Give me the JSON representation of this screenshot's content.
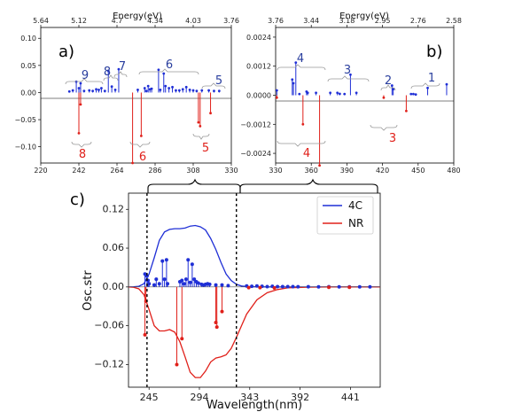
{
  "chart_data": [
    {
      "panel": "a)",
      "type": "stem",
      "xlim": [
        220,
        330
      ],
      "ylim": [
        -0.13,
        0.12
      ],
      "x_ticks": [
        220,
        242,
        264,
        286,
        308,
        330
      ],
      "y_ticks": [
        -0.1,
        -0.05,
        0.0,
        0.05,
        0.1
      ],
      "y_tick_labels": [
        "−0.10",
        "−0.05",
        "0.00",
        "0.05",
        "0.10"
      ],
      "top_axis": {
        "label": "Energy(eV)",
        "ticks": [
          220,
          242,
          264,
          286,
          308,
          330
        ],
        "tick_labels": [
          "5.64",
          "5.12",
          "4.7",
          "4.34",
          "4.03",
          "3.76"
        ]
      },
      "series": [
        {
          "color": "#1f2fd6",
          "points": [
            [
              236.5,
              0.002
            ],
            [
              238.5,
              0.004
            ],
            [
              240.5,
              0.02
            ],
            [
              242,
              0.008
            ],
            [
              243,
              0.017
            ],
            [
              245,
              0.003
            ],
            [
              248,
              0.004
            ],
            [
              250,
              0.003
            ],
            [
              252,
              0.006
            ],
            [
              253.5,
              0.005
            ],
            [
              255,
              0.008
            ],
            [
              257,
              0.003
            ],
            [
              259,
              0.04
            ],
            [
              261,
              0.011
            ],
            [
              263,
              0.005
            ],
            [
              265,
              0.043
            ],
            [
              276,
              0.005
            ],
            [
              280,
              0.008
            ],
            [
              281,
              0.003
            ],
            [
              282,
              0.012
            ],
            [
              283,
              0.006
            ],
            [
              284,
              0.007
            ],
            [
              288,
              0.042
            ],
            [
              289,
              0.005
            ],
            [
              291,
              0.035
            ],
            [
              292,
              0.012
            ],
            [
              294,
              0.008
            ],
            [
              296,
              0.01
            ],
            [
              298,
              0.004
            ],
            [
              300,
              0.004
            ],
            [
              302,
              0.006
            ],
            [
              304,
              0.01
            ],
            [
              306,
              0.005
            ],
            [
              308,
              0.004
            ],
            [
              310,
              0.003
            ],
            [
              313,
              0.004
            ],
            [
              317,
              0.004
            ],
            [
              320,
              0.003
            ],
            [
              323,
              0.003
            ]
          ]
        },
        {
          "color": "#e0201a",
          "points": [
            [
              242,
              -0.075
            ],
            [
              243,
              -0.022
            ],
            [
              273,
              -0.13
            ],
            [
              278,
              -0.08
            ],
            [
              311,
              -0.055
            ],
            [
              312,
              -0.062
            ],
            [
              318,
              -0.038
            ]
          ]
        }
      ],
      "annotations": [
        {
          "text": "9",
          "color": "blue"
        },
        {
          "text": "8",
          "color": "blue"
        },
        {
          "text": "7",
          "color": "blue"
        },
        {
          "text": "6",
          "color": "blue"
        },
        {
          "text": "5",
          "color": "blue"
        },
        {
          "text": "8",
          "color": "red"
        },
        {
          "text": "6",
          "color": "red"
        },
        {
          "text": "5",
          "color": "red"
        }
      ]
    },
    {
      "panel": "b)",
      "type": "stem",
      "xlim": [
        330,
        480
      ],
      "ylim": [
        -0.0028,
        0.0028
      ],
      "x_ticks": [
        330,
        360,
        390,
        420,
        450,
        480
      ],
      "y_ticks": [
        -0.0024,
        -0.0012,
        0.0,
        0.0012,
        0.0024
      ],
      "y_tick_labels": [
        "−0.0024",
        "−0.0012",
        "0.0000",
        "0.0012",
        "0.0024"
      ],
      "top_axis": {
        "label": "Energy(eV)",
        "ticks": [
          330,
          360,
          390,
          420,
          450,
          480
        ],
        "tick_labels": [
          "3.76",
          "3.44",
          "3.18",
          "2.95",
          "2.76",
          "2.58"
        ]
      },
      "series": [
        {
          "color": "#1f2fd6",
          "points": [
            [
              331,
              0.0002
            ],
            [
              344,
              0.00065
            ],
            [
              345,
              0.0005
            ],
            [
              347,
              0.00135
            ],
            [
              350,
              5e-05
            ],
            [
              356,
              0.00015
            ],
            [
              357,
              0.0001
            ],
            [
              364,
              0.0001
            ],
            [
              376,
              0.0001
            ],
            [
              382,
              0.0001
            ],
            [
              384,
              6e-05
            ],
            [
              388,
              5e-05
            ],
            [
              393,
              0.00085
            ],
            [
              398,
              0.0001
            ],
            [
              428,
              0.0004
            ],
            [
              429,
              0.00025
            ],
            [
              444,
              5e-05
            ],
            [
              446,
              5e-05
            ],
            [
              448,
              3e-05
            ],
            [
              458,
              0.0003
            ],
            [
              474,
              0.00045
            ]
          ]
        },
        {
          "color": "#e0201a",
          "points": [
            [
              331,
              -0.0001
            ],
            [
              353,
              -0.0012
            ],
            [
              367,
              -0.0029
            ],
            [
              421,
              -0.0001
            ],
            [
              440,
              -0.00065
            ]
          ]
        }
      ],
      "annotations": [
        {
          "text": "4",
          "color": "blue"
        },
        {
          "text": "3",
          "color": "blue"
        },
        {
          "text": "2",
          "color": "blue"
        },
        {
          "text": "1",
          "color": "blue"
        },
        {
          "text": "4",
          "color": "red"
        },
        {
          "text": "3",
          "color": "red"
        }
      ]
    },
    {
      "panel": "c)",
      "type": "line+stem",
      "xlabel": "Wavelength(nm)",
      "ylabel": "Osc.str",
      "xlim": [
        225,
        470
      ],
      "ylim": [
        -0.155,
        0.145
      ],
      "x_ticks": [
        245,
        294,
        343,
        392,
        441
      ],
      "y_ticks": [
        -0.12,
        -0.06,
        0.0,
        0.06,
        0.12
      ],
      "y_tick_labels": [
        "−0.12",
        "−0.06",
        "0.00",
        "0.06",
        "0.12"
      ],
      "dashed_vlines": [
        243,
        330
      ],
      "legend": {
        "placement": "top-right",
        "entries": [
          {
            "name": "4C",
            "color": "#1f2fd6"
          },
          {
            "name": "NR",
            "color": "#e0201a"
          }
        ]
      },
      "curves": [
        {
          "name": "4C",
          "color": "#1f2fd6",
          "x": [
            225,
            230,
            235,
            240,
            245,
            250,
            255,
            260,
            265,
            270,
            275,
            280,
            285,
            290,
            295,
            300,
            305,
            310,
            315,
            320,
            325,
            330,
            335,
            340,
            350,
            360,
            380,
            400,
            420,
            440,
            470
          ],
          "y": [
            0,
            0.0002,
            0.001,
            0.005,
            0.02,
            0.045,
            0.072,
            0.085,
            0.089,
            0.09,
            0.09,
            0.091,
            0.094,
            0.095,
            0.093,
            0.088,
            0.075,
            0.058,
            0.038,
            0.02,
            0.01,
            0.004,
            0.0015,
            0.0006,
            0.0002,
            0.0001,
            0,
            0,
            0,
            0,
            0
          ]
        },
        {
          "name": "NR",
          "color": "#e0201a",
          "x": [
            225,
            230,
            235,
            240,
            245,
            250,
            255,
            260,
            265,
            270,
            275,
            280,
            285,
            290,
            295,
            300,
            305,
            310,
            315,
            320,
            325,
            330,
            335,
            340,
            350,
            360,
            370,
            380,
            400,
            420,
            440,
            470
          ],
          "y": [
            0,
            -0.0005,
            -0.003,
            -0.012,
            -0.035,
            -0.06,
            -0.068,
            -0.068,
            -0.066,
            -0.07,
            -0.085,
            -0.108,
            -0.132,
            -0.14,
            -0.14,
            -0.13,
            -0.116,
            -0.11,
            -0.108,
            -0.105,
            -0.095,
            -0.078,
            -0.06,
            -0.042,
            -0.02,
            -0.009,
            -0.004,
            -0.0015,
            -0.0003,
            0,
            0,
            0
          ]
        }
      ],
      "series": [
        {
          "color": "#1f2fd6",
          "points": [
            [
              241,
              0.02
            ],
            [
              243,
              0.017
            ],
            [
              244,
              0.01
            ],
            [
              245,
              0.005
            ],
            [
              250,
              0.003
            ],
            [
              252,
              0.012
            ],
            [
              255,
              0.005
            ],
            [
              258,
              0.04
            ],
            [
              260,
              0.012
            ],
            [
              262,
              0.042
            ],
            [
              263,
              0.005
            ],
            [
              275,
              0.008
            ],
            [
              277,
              0.01
            ],
            [
              279,
              0.005
            ],
            [
              281,
              0.012
            ],
            [
              283,
              0.042
            ],
            [
              285,
              0.007
            ],
            [
              287,
              0.035
            ],
            [
              289,
              0.012
            ],
            [
              291,
              0.008
            ],
            [
              293,
              0.006
            ],
            [
              296,
              0.004
            ],
            [
              298,
              0.003
            ],
            [
              300,
              0.004
            ],
            [
              302,
              0.005
            ],
            [
              304,
              0.004
            ],
            [
              310,
              0.003
            ],
            [
              316,
              0.003
            ],
            [
              322,
              0.002
            ],
            [
              340,
              0.0015
            ],
            [
              345,
              0.001
            ],
            [
              350,
              0.0015
            ],
            [
              355,
              0.001
            ],
            [
              360,
              0.0005
            ],
            [
              365,
              0.001
            ],
            [
              370,
              0.0005
            ],
            [
              375,
              0.0005
            ],
            [
              380,
              0.0005
            ],
            [
              385,
              0.0004
            ],
            [
              390,
              0.0003
            ],
            [
              400,
              0.0003
            ],
            [
              410,
              0.0002
            ],
            [
              420,
              0.0003
            ],
            [
              430,
              0.0002
            ],
            [
              440,
              0.0002
            ],
            [
              450,
              0.0001
            ],
            [
              460,
              0.0001
            ]
          ]
        },
        {
          "color": "#e0201a",
          "points": [
            [
              241,
              -0.074
            ],
            [
              242,
              -0.022
            ],
            [
              272,
              -0.12
            ],
            [
              277,
              -0.08
            ],
            [
              310,
              -0.055
            ],
            [
              311,
              -0.062
            ],
            [
              316,
              -0.038
            ],
            [
              342,
              -0.001
            ],
            [
              353,
              -0.001
            ],
            [
              367,
              -0.0015
            ],
            [
              420,
              -0.0005
            ],
            [
              440,
              -0.0005
            ]
          ]
        }
      ]
    }
  ]
}
